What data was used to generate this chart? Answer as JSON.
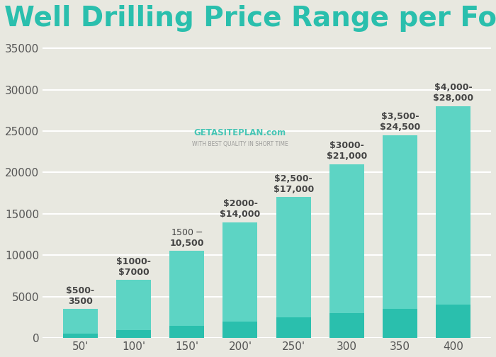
{
  "title": "Well Drilling Price Range per Foot",
  "categories": [
    "50'",
    "100'",
    "150'",
    "200'",
    "250'",
    "300",
    "350",
    "400"
  ],
  "min_values": [
    500,
    1000,
    1500,
    2000,
    2500,
    3000,
    3500,
    4000
  ],
  "max_values": [
    3500,
    7000,
    10500,
    14000,
    17000,
    21000,
    24500,
    28000
  ],
  "labels": [
    "$500-\n3500",
    "$1000-\n$7000",
    "$1500-$\n10,500",
    "$2000-\n$14,000",
    "$2,500-\n$17,000",
    "$3000-\n$21,000",
    "$3,500-\n$24,500",
    "$4,000-\n$28,000"
  ],
  "color_bottom": "#2abfad",
  "color_top": "#5dd4c4",
  "background_color": "#e8e8e0",
  "title_color": "#2abfad",
  "ylim": [
    0,
    36000
  ],
  "yticks": [
    0,
    5000,
    10000,
    15000,
    20000,
    25000,
    30000,
    35000
  ],
  "grid_color": "#ffffff",
  "title_fontsize": 28,
  "label_fontsize": 9,
  "tick_fontsize": 11
}
